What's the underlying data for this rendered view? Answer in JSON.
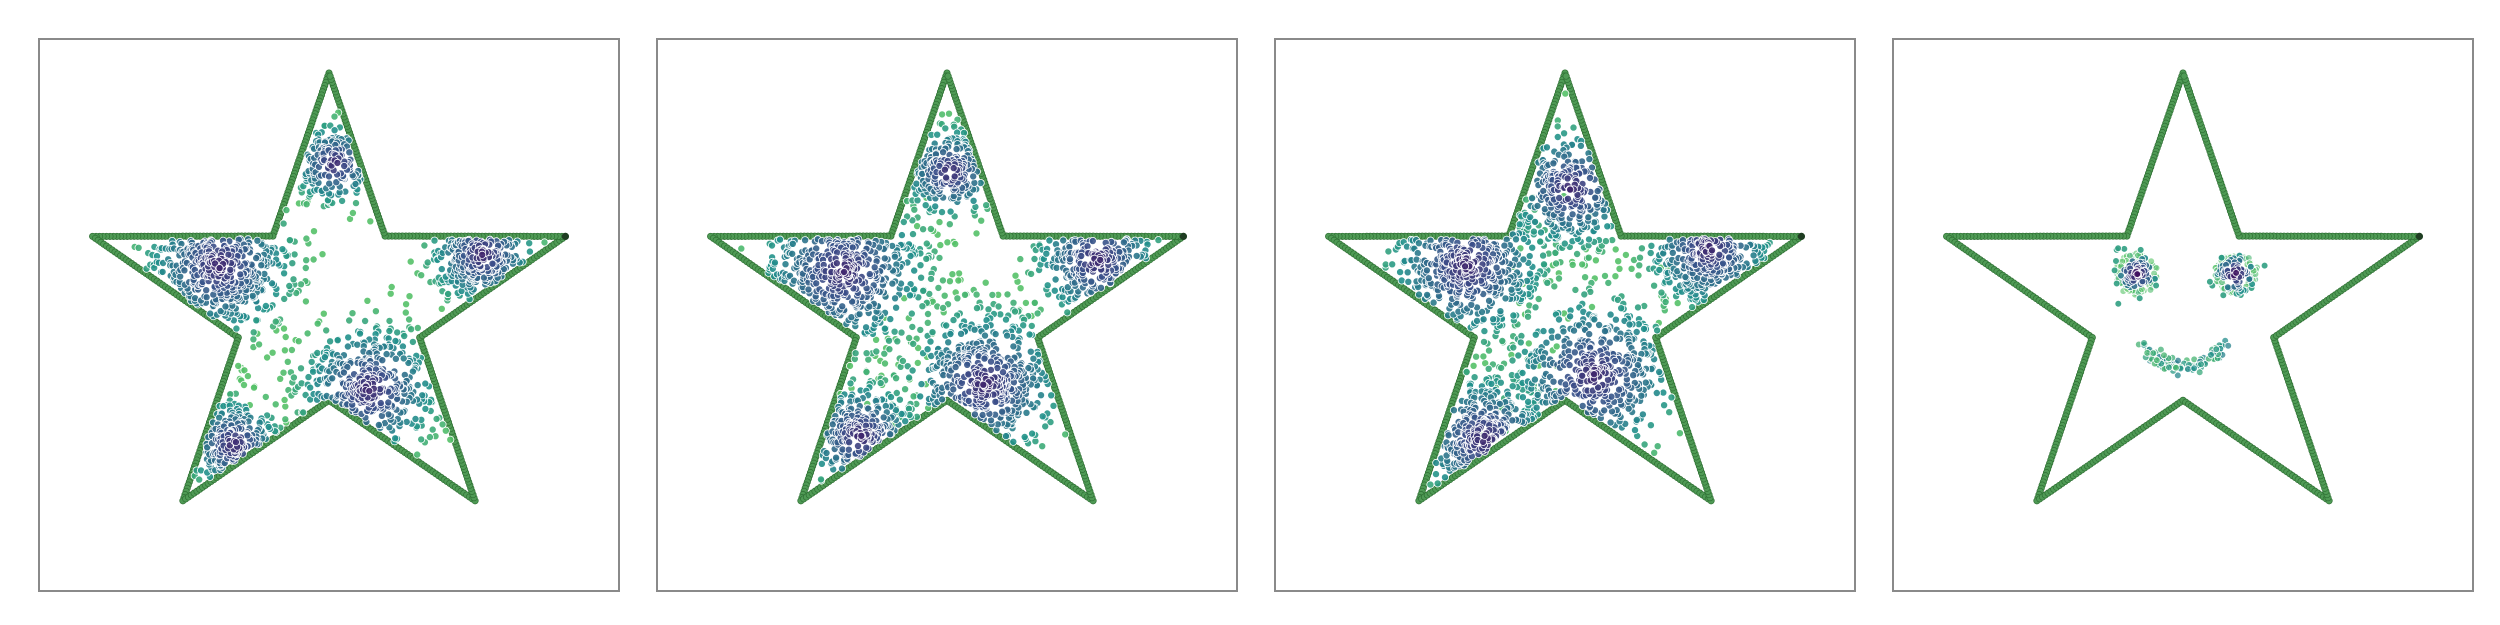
{
  "chart_data": [
    {
      "type": "scatter",
      "xlim": [
        -1.0,
        1.0
      ],
      "ylim": [
        -1.0,
        1.0
      ],
      "grid": false,
      "legend": "none",
      "boundary": {
        "name": "",
        "shape": "five-point-star",
        "outer_radius": 0.86,
        "inner_radius": 0.33,
        "center": [
          0.0,
          0.02
        ],
        "color": "#4f9a55",
        "edge_color": "#2e6f33"
      },
      "clusters": [
        {
          "center": [
            -0.38,
            0.18
          ],
          "spread": 0.14,
          "weight": 1.0
        },
        {
          "center": [
            0.14,
            -0.27
          ],
          "spread": 0.13,
          "weight": 0.9
        },
        {
          "center": [
            0.53,
            0.22
          ],
          "spread": 0.1,
          "weight": 0.55
        },
        {
          "center": [
            -0.33,
            -0.47
          ],
          "spread": 0.09,
          "weight": 0.45
        },
        {
          "center": [
            0.02,
            0.55
          ],
          "spread": 0.08,
          "weight": 0.35
        }
      ],
      "point_count": 1500,
      "colormap": [
        "#440154",
        "#3b528b",
        "#21918c",
        "#5ec962"
      ]
    },
    {
      "type": "scatter",
      "xlim": [
        -1.0,
        1.0
      ],
      "ylim": [
        -1.0,
        1.0
      ],
      "grid": false,
      "legend": "none",
      "boundary": {
        "name": "",
        "shape": "five-point-star",
        "outer_radius": 0.86,
        "inner_radius": 0.33,
        "center": [
          0.0,
          0.02
        ],
        "color": "#4f9a55",
        "edge_color": "#2e6f33"
      },
      "clusters": [
        {
          "center": [
            -0.36,
            0.16
          ],
          "spread": 0.16,
          "weight": 1.0
        },
        {
          "center": [
            0.13,
            -0.25
          ],
          "spread": 0.15,
          "weight": 1.0
        },
        {
          "center": [
            0.52,
            0.2
          ],
          "spread": 0.12,
          "weight": 0.5
        },
        {
          "center": [
            -0.3,
            -0.44
          ],
          "spread": 0.11,
          "weight": 0.5
        },
        {
          "center": [
            0.01,
            0.52
          ],
          "spread": 0.09,
          "weight": 0.45
        }
      ],
      "point_count": 1700,
      "colormap": [
        "#440154",
        "#3b528b",
        "#21918c",
        "#5ec962"
      ]
    },
    {
      "type": "scatter",
      "xlim": [
        -1.0,
        1.0
      ],
      "ylim": [
        -1.0,
        1.0
      ],
      "grid": false,
      "legend": "none",
      "boundary": {
        "name": "",
        "shape": "five-point-star",
        "outer_radius": 0.86,
        "inner_radius": 0.33,
        "center": [
          0.0,
          0.02
        ],
        "color": "#4f9a55",
        "edge_color": "#2e6f33"
      },
      "clusters": [
        {
          "center": [
            -0.34,
            0.18
          ],
          "spread": 0.15,
          "weight": 1.0
        },
        {
          "center": [
            0.1,
            -0.22
          ],
          "spread": 0.16,
          "weight": 1.0
        },
        {
          "center": [
            0.5,
            0.24
          ],
          "spread": 0.12,
          "weight": 0.6
        },
        {
          "center": [
            -0.28,
            -0.45
          ],
          "spread": 0.13,
          "weight": 0.65
        },
        {
          "center": [
            0.02,
            0.46
          ],
          "spread": 0.12,
          "weight": 0.6
        }
      ],
      "point_count": 1800,
      "colormap": [
        "#440154",
        "#3b528b",
        "#21918c",
        "#5ec962"
      ]
    },
    {
      "type": "scatter",
      "xlim": [
        -1.0,
        1.0
      ],
      "ylim": [
        -1.0,
        1.0
      ],
      "grid": false,
      "legend": "none",
      "boundary": {
        "name": "",
        "shape": "five-point-star",
        "outer_radius": 0.86,
        "inner_radius": 0.33,
        "center": [
          0.0,
          0.02
        ],
        "color": "#4f9a55",
        "edge_color": "#2e6f33"
      },
      "features": {
        "left_eye": {
          "center": [
            -0.16,
            0.15
          ],
          "ring_radius": 0.065,
          "core_spread": 0.035
        },
        "right_eye": {
          "center": [
            0.18,
            0.15
          ],
          "ring_radius": 0.065,
          "core_spread": 0.035
        },
        "smile": {
          "center": [
            0.0,
            -0.14
          ],
          "width": 0.3,
          "depth": 0.05
        }
      },
      "point_count": 420,
      "colormap": [
        "#440154",
        "#3b528b",
        "#21918c",
        "#5ec962"
      ]
    }
  ]
}
